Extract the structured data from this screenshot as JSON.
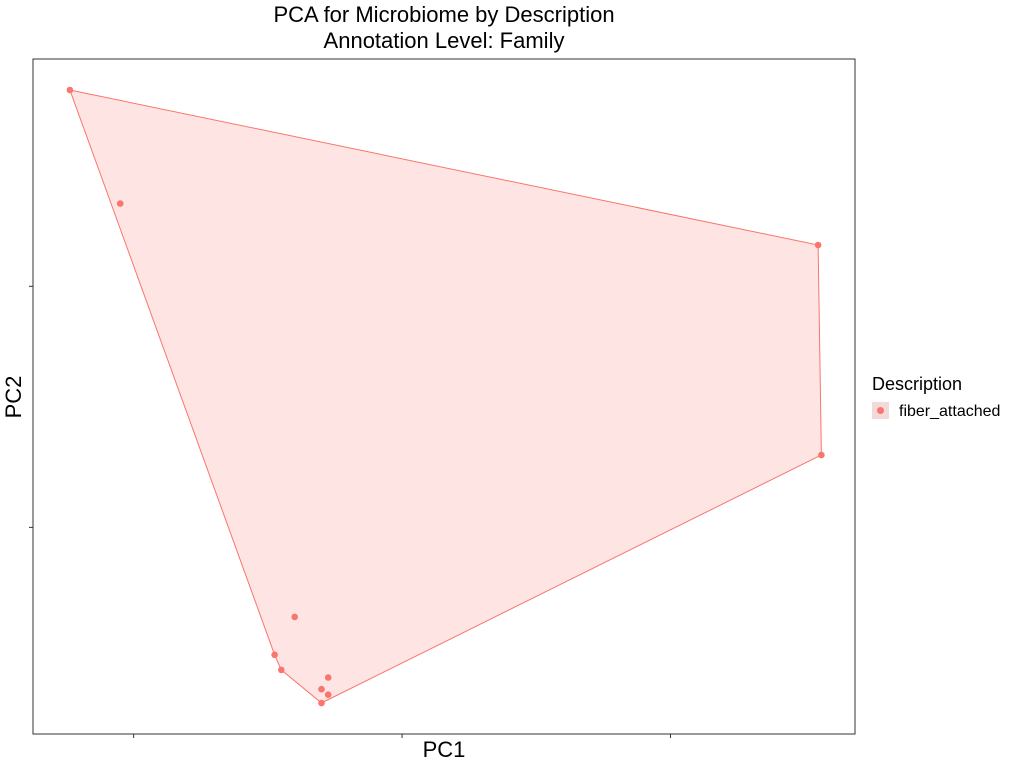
{
  "chart_data": {
    "type": "scatter",
    "title": "PCA for Microbiome by Description",
    "subtitle": "Annotation Level: Family",
    "xlabel": "PC1",
    "ylabel": "PC2",
    "xlim": [
      -0.15,
      1.075
    ],
    "ylim": [
      -0.1,
      0.88
    ],
    "grid": false,
    "legend": {
      "title": "Description",
      "position": "right",
      "entries": [
        "fiber_attached"
      ]
    },
    "series": [
      {
        "name": "fiber_attached",
        "color": "#F8766D",
        "hull": true,
        "points": [
          {
            "x": -0.095,
            "y": 0.835
          },
          {
            "x": -0.02,
            "y": 0.67
          },
          {
            "x": 1.02,
            "y": 0.61
          },
          {
            "x": 1.025,
            "y": 0.305
          },
          {
            "x": 0.24,
            "y": 0.07
          },
          {
            "x": 0.21,
            "y": 0.015
          },
          {
            "x": 0.22,
            "y": -0.007
          },
          {
            "x": 0.28,
            "y": -0.035
          },
          {
            "x": 0.29,
            "y": -0.018
          },
          {
            "x": 0.29,
            "y": -0.043
          },
          {
            "x": 0.28,
            "y": -0.055
          }
        ]
      }
    ]
  }
}
